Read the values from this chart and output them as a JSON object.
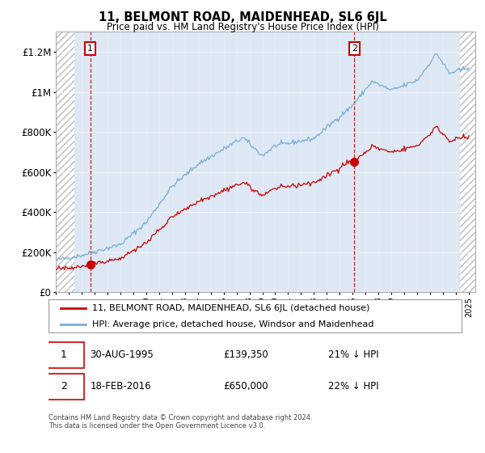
{
  "title": "11, BELMONT ROAD, MAIDENHEAD, SL6 6JL",
  "subtitle": "Price paid vs. HM Land Registry's House Price Index (HPI)",
  "yticks": [
    0,
    200000,
    400000,
    600000,
    800000,
    1000000,
    1200000
  ],
  "ytick_labels": [
    "£0",
    "£200K",
    "£400K",
    "£600K",
    "£800K",
    "£1M",
    "£1.2M"
  ],
  "sale1_date": "30-AUG-1995",
  "sale1_price": 139350,
  "sale1_year": 1995.67,
  "sale2_date": "18-FEB-2016",
  "sale2_price": 650000,
  "sale2_year": 2016.13,
  "legend_line1": "11, BELMONT ROAD, MAIDENHEAD, SL6 6JL (detached house)",
  "legend_line2": "HPI: Average price, detached house, Windsor and Maidenhead",
  "footer": "Contains HM Land Registry data © Crown copyright and database right 2024.\nThis data is licensed under the Open Government Licence v3.0.",
  "bg_color": "#dde8f4",
  "sold_line_color": "#cc0000",
  "hpi_line_color": "#7aadd4",
  "sold_dot_color": "#cc0000"
}
